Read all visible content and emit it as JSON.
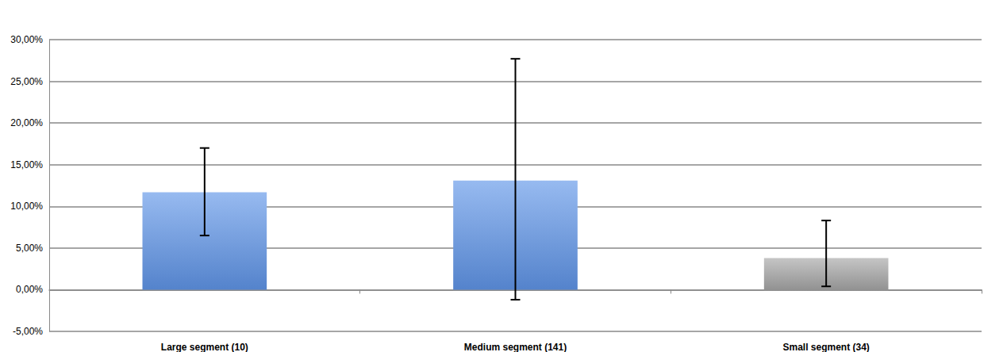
{
  "chart_data": {
    "type": "bar",
    "categories": [
      "Large segment (10)",
      "Medium segment (141)",
      "Small segment (34)"
    ],
    "values": [
      11.7,
      13.1,
      3.8
    ],
    "error_bars": [
      [
        6.5,
        17.0
      ],
      [
        -1.2,
        27.7
      ],
      [
        0.4,
        8.3
      ]
    ],
    "colors": [
      "#5f95e8",
      "#5f95e8",
      "#a6a6a6"
    ],
    "ylim": [
      -5,
      30
    ],
    "yticks": [
      {
        "value": -5,
        "label": "-5,00%"
      },
      {
        "value": 0,
        "label": "0,00%"
      },
      {
        "value": 5,
        "label": "5,00%"
      },
      {
        "value": 10,
        "label": "10,00%"
      },
      {
        "value": 15,
        "label": "15,00%"
      },
      {
        "value": 20,
        "label": "20,00%"
      },
      {
        "value": 25,
        "label": "25,00%"
      },
      {
        "value": 30,
        "label": "30,00%"
      }
    ],
    "grid": true
  }
}
